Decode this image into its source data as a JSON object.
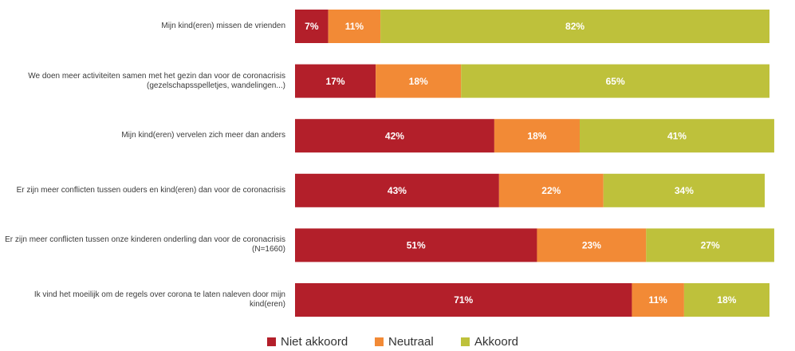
{
  "chart_data": {
    "type": "stacked-bar-horizontal",
    "categories": [
      "Mijn kind(eren) missen de vrienden",
      "We doen meer activiteiten samen met het gezin dan voor de coronacrisis (gezelschapsspelletjes, wandelingen...)",
      "Mijn kind(eren) vervelen zich meer dan anders",
      "Er zijn meer conflicten tussen ouders en kind(eren) dan voor de coronacrisis",
      "Er zijn meer conflicten tussen onze kinderen onderling dan voor de coronacrisis (N=1660)",
      "Ik vind het moeilijk om de regels over corona te laten naleven door mijn kind(eren)"
    ],
    "series": [
      {
        "name": "Niet akkoord",
        "color": "#b31f2a",
        "values": [
          7,
          17,
          42,
          43,
          51,
          71
        ],
        "value_labels": [
          "7%",
          "17%",
          "42%",
          "43%",
          "51%",
          "71%"
        ]
      },
      {
        "name": "Neutraal",
        "color": "#f28a36",
        "values": [
          11,
          18,
          18,
          22,
          23,
          11
        ],
        "value_labels": [
          "11%",
          "18%",
          "18%",
          "22%",
          "23%",
          "11%"
        ]
      },
      {
        "name": "Akkoord",
        "color": "#bec13b",
        "values": [
          82,
          65,
          41,
          34,
          27,
          18
        ],
        "value_labels": [
          "82%",
          "65%",
          "41%",
          "34%",
          "27%",
          "18%"
        ]
      }
    ],
    "legend": "bottom"
  }
}
